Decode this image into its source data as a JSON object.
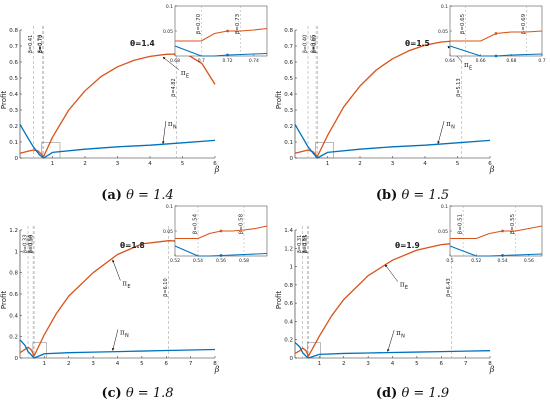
{
  "chart_data": [
    {
      "type": "line",
      "panel_label": "(a)",
      "caption": "θ = 1.4",
      "annotation": "θ=1.4",
      "ylabel": "Profit",
      "xlabel": "β",
      "xlim": [
        0,
        6
      ],
      "ylim": [
        0,
        0.8
      ],
      "xticks": [
        1,
        2,
        3,
        4,
        5,
        6
      ],
      "yticks": [
        0,
        0.1,
        0.2,
        0.3,
        0.4,
        0.5,
        0.6,
        0.7,
        0.8
      ],
      "series": [
        {
          "name": "π_E",
          "label": "π",
          "label_sub": "E",
          "color": "#d95319",
          "x": [
            0,
            0.2,
            0.41,
            0.55,
            0.73,
            1.0,
            1.5,
            2.0,
            2.5,
            3.0,
            3.5,
            4.0,
            4.5,
            4.82,
            5.2,
            5.6,
            6.0
          ],
          "y": [
            0.03,
            0.04,
            0.05,
            0.045,
            0.01,
            0.13,
            0.3,
            0.42,
            0.51,
            0.57,
            0.61,
            0.635,
            0.648,
            0.65,
            0.64,
            0.59,
            0.46
          ],
          "label_x": 4.95,
          "label_y": 0.52,
          "arrow_to": [
            4.4,
            0.63
          ]
        },
        {
          "name": "π_N",
          "label": "π",
          "label_sub": "N",
          "color": "#0072bd",
          "x": [
            0,
            0.2,
            0.41,
            0.6,
            0.73,
            1.0,
            2.0,
            3.0,
            4.0,
            5.0,
            6.0
          ],
          "y": [
            0.21,
            0.14,
            0.07,
            0.02,
            0.0,
            0.035,
            0.055,
            0.07,
            0.08,
            0.095,
            0.11
          ],
          "label_x": 4.55,
          "label_y": 0.2,
          "arrow_to": [
            4.4,
            0.09
          ]
        }
      ],
      "vlines": [
        {
          "x": 0.41,
          "label": "β=0.41"
        },
        {
          "x": 0.7,
          "label": "β=0.70"
        },
        {
          "x": 0.73,
          "label": "β=0.73"
        },
        {
          "x": 4.82,
          "label": "β=4.82"
        }
      ],
      "inset": {
        "xlim": [
          0.68,
          0.75
        ],
        "ylim": [
          0,
          0.1
        ],
        "xticks": [
          0.68,
          0.7,
          0.72,
          0.74
        ],
        "xtick_labels": [
          "0.68",
          "0.7",
          "0.72",
          "0.74"
        ],
        "yticks": [
          0.05,
          0.1
        ],
        "ytick_labels": [
          "0.05",
          "0.1"
        ],
        "vlines": [
          {
            "x": 0.7,
            "label": "β=0.70"
          },
          {
            "x": 0.73,
            "label": "β=0.73"
          }
        ],
        "series": [
          {
            "name": "π_E",
            "color": "#d95319",
            "x": [
              0.68,
              0.69,
              0.7,
              0.71,
              0.72,
              0.73,
              0.74,
              0.75
            ],
            "y": [
              0.03,
              0.03,
              0.03,
              0.045,
              0.05,
              0.05,
              0.052,
              0.055
            ]
          },
          {
            "name": "π_N",
            "color": "#0072bd",
            "x": [
              0.68,
              0.69,
              0.7,
              0.71,
              0.72,
              0.73,
              0.74,
              0.75
            ],
            "y": [
              0.02,
              0.01,
              0.0,
              0.0,
              0.002,
              0.003,
              0.004,
              0.005
            ]
          }
        ]
      }
    },
    {
      "type": "line",
      "panel_label": "(b)",
      "caption": "θ = 1.5",
      "annotation": "θ=1.5",
      "ylabel": "Profit",
      "xlabel": "β",
      "xlim": [
        0,
        6
      ],
      "ylim": [
        0,
        0.8
      ],
      "xticks": [
        1,
        2,
        3,
        4,
        5,
        6
      ],
      "yticks": [
        0,
        0.1,
        0.2,
        0.3,
        0.4,
        0.5,
        0.6,
        0.7,
        0.8
      ],
      "series": [
        {
          "name": "π_E",
          "label": "π",
          "label_sub": "E",
          "color": "#d95319",
          "x": [
            0,
            0.2,
            0.4,
            0.55,
            0.69,
            1.0,
            1.5,
            2.0,
            2.5,
            3.0,
            3.5,
            4.0,
            4.5,
            5.13,
            5.5,
            6.0
          ],
          "y": [
            0.03,
            0.04,
            0.05,
            0.04,
            0.01,
            0.14,
            0.32,
            0.45,
            0.55,
            0.62,
            0.67,
            0.705,
            0.725,
            0.735,
            0.725,
            0.66
          ],
          "label_x": 5.2,
          "label_y": 0.57,
          "arrow_to": [
            4.7,
            0.7
          ]
        },
        {
          "name": "π_N",
          "label": "π",
          "label_sub": "N",
          "color": "#0072bd",
          "x": [
            0,
            0.2,
            0.4,
            0.6,
            0.69,
            1.0,
            2.0,
            3.0,
            4.0,
            5.0,
            6.0
          ],
          "y": [
            0.21,
            0.14,
            0.07,
            0.02,
            0.0,
            0.035,
            0.055,
            0.07,
            0.08,
            0.095,
            0.11
          ],
          "label_x": 4.65,
          "label_y": 0.2,
          "arrow_to": [
            4.4,
            0.09
          ]
        }
      ],
      "vlines": [
        {
          "x": 0.4,
          "label": "β=0.40"
        },
        {
          "x": 0.65,
          "label": "β=0.65"
        },
        {
          "x": 0.69,
          "label": "β=0.69"
        },
        {
          "x": 5.13,
          "label": "β=5.13"
        }
      ],
      "inset": {
        "xlim": [
          0.64,
          0.7
        ],
        "ylim": [
          0,
          0.1
        ],
        "xticks": [
          0.64,
          0.66,
          0.68,
          0.7
        ],
        "xtick_labels": [
          "0.64",
          "0.66",
          "0.68",
          "0.7"
        ],
        "yticks": [
          0.05,
          0.1
        ],
        "ytick_labels": [
          "0.05",
          "0.1"
        ],
        "vlines": [
          {
            "x": 0.65,
            "label": "β=0.65"
          },
          {
            "x": 0.69,
            "label": "β=0.69"
          }
        ],
        "series": [
          {
            "name": "π_E",
            "color": "#d95319",
            "x": [
              0.64,
              0.65,
              0.66,
              0.67,
              0.68,
              0.69,
              0.7
            ],
            "y": [
              0.03,
              0.03,
              0.03,
              0.045,
              0.048,
              0.048,
              0.05
            ]
          },
          {
            "name": "π_N",
            "color": "#0072bd",
            "x": [
              0.64,
              0.65,
              0.66,
              0.67,
              0.68,
              0.69,
              0.7
            ],
            "y": [
              0.02,
              0.01,
              0.0,
              0.0,
              0.002,
              0.003,
              0.004
            ]
          }
        ]
      }
    },
    {
      "type": "line",
      "panel_label": "(c)",
      "caption": "θ = 1.8",
      "annotation": "θ=1.8",
      "ylabel": "Profit",
      "xlabel": "β",
      "xlim": [
        0,
        8
      ],
      "ylim": [
        0,
        1.2
      ],
      "xticks": [
        1,
        2,
        3,
        4,
        5,
        6,
        7,
        8
      ],
      "yticks": [
        0,
        0.2,
        0.4,
        0.6,
        0.8,
        1,
        1.2
      ],
      "series": [
        {
          "name": "π_E",
          "label": "π",
          "label_sub": "E",
          "color": "#d95319",
          "x": [
            0,
            0.2,
            0.33,
            0.45,
            0.58,
            1.0,
            1.5,
            2.0,
            3.0,
            4.0,
            5.0,
            6.1,
            7.0,
            8.0
          ],
          "y": [
            0.05,
            0.08,
            0.1,
            0.08,
            0.02,
            0.22,
            0.42,
            0.58,
            0.8,
            0.97,
            1.07,
            1.1,
            1.09,
            1.04
          ],
          "label_x": 4.2,
          "label_y": 0.68,
          "arrow_to": [
            3.8,
            0.92
          ]
        },
        {
          "name": "π_N",
          "label": "π",
          "label_sub": "N",
          "color": "#0072bd",
          "x": [
            0,
            0.2,
            0.33,
            0.5,
            0.58,
            1.0,
            2.0,
            3.0,
            4.0,
            5.0,
            6.0,
            7.0,
            8.0
          ],
          "y": [
            0.17,
            0.12,
            0.06,
            0.02,
            0.0,
            0.04,
            0.05,
            0.055,
            0.06,
            0.065,
            0.07,
            0.075,
            0.08
          ],
          "label_x": 4.1,
          "label_y": 0.22,
          "arrow_to": [
            3.8,
            0.07
          ]
        }
      ],
      "vlines": [
        {
          "x": 0.33,
          "label": "β=0.33"
        },
        {
          "x": 0.54,
          "label": "β=0.54"
        },
        {
          "x": 0.58,
          "label": "β=0.58"
        },
        {
          "x": 6.1,
          "label": "β=6.10"
        }
      ],
      "inset": {
        "xlim": [
          0.52,
          0.6
        ],
        "ylim": [
          0,
          0.1
        ],
        "xticks": [
          0.52,
          0.54,
          0.56,
          0.58
        ],
        "xtick_labels": [
          "0.52",
          "0.54",
          "0.56",
          "0.58"
        ],
        "yticks": [
          0.05,
          0.1
        ],
        "ytick_labels": [
          "0.05",
          "0.1"
        ],
        "vlines": [
          {
            "x": 0.54,
            "label": "β=0.54"
          },
          {
            "x": 0.58,
            "label": "β=0.58"
          }
        ],
        "series": [
          {
            "name": "π_E",
            "color": "#d95319",
            "x": [
              0.52,
              0.53,
              0.54,
              0.55,
              0.56,
              0.57,
              0.58,
              0.59,
              0.6
            ],
            "y": [
              0.035,
              0.035,
              0.035,
              0.045,
              0.05,
              0.05,
              0.052,
              0.055,
              0.06
            ]
          },
          {
            "name": "π_N",
            "color": "#0072bd",
            "x": [
              0.52,
              0.53,
              0.54,
              0.55,
              0.56,
              0.57,
              0.58,
              0.59,
              0.6
            ],
            "y": [
              0.02,
              0.01,
              0.0,
              0.0,
              0.001,
              0.002,
              0.003,
              0.004,
              0.005
            ]
          }
        ]
      }
    },
    {
      "type": "line",
      "panel_label": "(d)",
      "caption": "θ = 1.9",
      "annotation": "θ=1.9",
      "ylabel": "Profit",
      "xlabel": "β",
      "xlim": [
        0,
        8
      ],
      "ylim": [
        0,
        1.4
      ],
      "xticks": [
        1,
        2,
        3,
        4,
        5,
        6,
        7,
        8
      ],
      "yticks": [
        0,
        0.2,
        0.4,
        0.6,
        0.8,
        1,
        1.2,
        1.4
      ],
      "series": [
        {
          "name": "π_E",
          "label": "π",
          "label_sub": "E",
          "color": "#d95319",
          "x": [
            0,
            0.2,
            0.31,
            0.45,
            0.55,
            1.0,
            1.5,
            2.0,
            3.0,
            4.0,
            5.0,
            6.0,
            6.43,
            7.0,
            8.0
          ],
          "y": [
            0.05,
            0.08,
            0.11,
            0.08,
            0.02,
            0.24,
            0.46,
            0.64,
            0.9,
            1.07,
            1.18,
            1.24,
            1.25,
            1.245,
            1.22
          ],
          "label_x": 4.3,
          "label_y": 0.78,
          "arrow_to": [
            3.7,
            1.02
          ]
        },
        {
          "name": "π_N",
          "label": "π",
          "label_sub": "N",
          "color": "#0072bd",
          "x": [
            0,
            0.2,
            0.31,
            0.45,
            0.55,
            1.0,
            2.0,
            3.0,
            4.0,
            5.0,
            6.0,
            7.0,
            8.0
          ],
          "y": [
            0.17,
            0.12,
            0.06,
            0.02,
            0.0,
            0.04,
            0.05,
            0.055,
            0.06,
            0.065,
            0.07,
            0.075,
            0.08
          ],
          "label_x": 4.15,
          "label_y": 0.25,
          "arrow_to": [
            3.8,
            0.07
          ]
        }
      ],
      "vlines": [
        {
          "x": 0.31,
          "label": "β=0.31"
        },
        {
          "x": 0.51,
          "label": "β=0.51"
        },
        {
          "x": 0.55,
          "label": "β=0.55"
        },
        {
          "x": 6.43,
          "label": "β=6.43"
        }
      ],
      "inset": {
        "xlim": [
          0.5,
          0.57
        ],
        "ylim": [
          0,
          0.1
        ],
        "xticks": [
          0.5,
          0.52,
          0.54,
          0.56
        ],
        "xtick_labels": [
          "0.5",
          "0.52",
          "0.54",
          "0.56"
        ],
        "yticks": [
          0.05,
          0.1
        ],
        "ytick_labels": [
          "0.05",
          "0.1"
        ],
        "vlines": [
          {
            "x": 0.51,
            "label": "β=0.51"
          },
          {
            "x": 0.55,
            "label": "β=0.55"
          }
        ],
        "series": [
          {
            "name": "π_E",
            "color": "#d95319",
            "x": [
              0.5,
              0.51,
              0.52,
              0.53,
              0.54,
              0.55,
              0.56,
              0.57
            ],
            "y": [
              0.035,
              0.035,
              0.035,
              0.045,
              0.05,
              0.05,
              0.055,
              0.06
            ]
          },
          {
            "name": "π_N",
            "color": "#0072bd",
            "x": [
              0.5,
              0.51,
              0.52,
              0.53,
              0.54,
              0.55,
              0.56,
              0.57
            ],
            "y": [
              0.02,
              0.01,
              0.0,
              0.0,
              0.001,
              0.002,
              0.003,
              0.004
            ]
          }
        ]
      }
    }
  ]
}
